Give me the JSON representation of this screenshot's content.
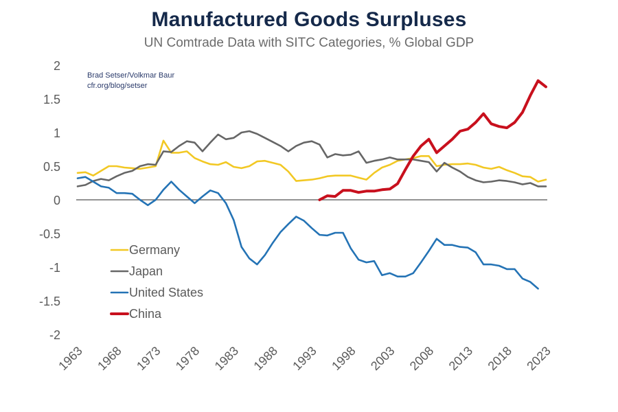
{
  "chart_data": {
    "type": "line",
    "title": "Manufactured Goods Surpluses",
    "subtitle": "UN Comtrade Data with SITC Categories, % Global GDP",
    "credit": [
      "Brad Setser/Volkmar Baur",
      "cfr.org/blog/setser"
    ],
    "xlabel": "",
    "ylabel": "",
    "ylim": [
      -2,
      2
    ],
    "xlim": [
      1963,
      2023
    ],
    "yticks": [
      2,
      1.5,
      1,
      0.5,
      0,
      -0.5,
      -1,
      -1.5,
      -2
    ],
    "ytick_labels": [
      "2",
      "1.5",
      "1",
      "0.5",
      "0",
      "-0.5",
      "-1",
      "-1.5",
      "-2"
    ],
    "xticks": [
      1963,
      1968,
      1973,
      1978,
      1983,
      1988,
      1993,
      1998,
      2003,
      2008,
      2013,
      2018,
      2023
    ],
    "xtick_labels": [
      "1963",
      "1968",
      "1973",
      "1978",
      "1983",
      "1988",
      "1993",
      "1998",
      "2003",
      "2008",
      "2013",
      "2018",
      "2023"
    ],
    "grid": false,
    "zero_line": true,
    "legend_position": "lower-left",
    "series": [
      {
        "name": "Germany",
        "color": "#f2c824",
        "start_year": 1963,
        "values": [
          0.4,
          0.41,
          0.36,
          0.43,
          0.5,
          0.5,
          0.48,
          0.47,
          0.46,
          0.48,
          0.5,
          0.88,
          0.7,
          0.7,
          0.72,
          0.62,
          0.57,
          0.53,
          0.52,
          0.56,
          0.49,
          0.47,
          0.5,
          0.57,
          0.58,
          0.55,
          0.52,
          0.42,
          0.28,
          0.29,
          0.3,
          0.32,
          0.35,
          0.36,
          0.36,
          0.36,
          0.33,
          0.3,
          0.4,
          0.48,
          0.52,
          0.58,
          0.6,
          0.62,
          0.65,
          0.65,
          0.5,
          0.52,
          0.53,
          0.53,
          0.54,
          0.52,
          0.48,
          0.46,
          0.49,
          0.44,
          0.4,
          0.35,
          0.34,
          0.27,
          0.3
        ]
      },
      {
        "name": "Japan",
        "color": "#666666",
        "start_year": 1963,
        "values": [
          0.2,
          0.22,
          0.28,
          0.31,
          0.29,
          0.35,
          0.4,
          0.43,
          0.5,
          0.53,
          0.52,
          0.72,
          0.71,
          0.8,
          0.87,
          0.85,
          0.72,
          0.85,
          0.97,
          0.9,
          0.92,
          1.0,
          1.02,
          0.98,
          0.92,
          0.86,
          0.8,
          0.72,
          0.8,
          0.85,
          0.87,
          0.82,
          0.63,
          0.68,
          0.66,
          0.67,
          0.72,
          0.55,
          0.58,
          0.6,
          0.63,
          0.6,
          0.6,
          0.6,
          0.58,
          0.56,
          0.42,
          0.55,
          0.48,
          0.42,
          0.34,
          0.29,
          0.26,
          0.27,
          0.29,
          0.28,
          0.26,
          0.23,
          0.25,
          0.2,
          0.2
        ]
      },
      {
        "name": "United States",
        "color": "#2473b5",
        "start_year": 1963,
        "values": [
          0.32,
          0.34,
          0.27,
          0.2,
          0.18,
          0.1,
          0.1,
          0.09,
          0.0,
          -0.08,
          0.0,
          0.15,
          0.27,
          0.15,
          0.05,
          -0.05,
          0.05,
          0.14,
          0.1,
          -0.05,
          -0.3,
          -0.7,
          -0.87,
          -0.96,
          -0.82,
          -0.64,
          -0.48,
          -0.36,
          -0.25,
          -0.31,
          -0.42,
          -0.52,
          -0.53,
          -0.49,
          -0.49,
          -0.72,
          -0.89,
          -0.93,
          -0.91,
          -1.12,
          -1.09,
          -1.14,
          -1.14,
          -1.09,
          -0.93,
          -0.76,
          -0.58,
          -0.67,
          -0.67,
          -0.7,
          -0.71,
          -0.78,
          -0.96,
          -0.96,
          -0.98,
          -1.03,
          -1.03,
          -1.17,
          -1.22,
          -1.32
        ]
      },
      {
        "name": "China",
        "color": "#c8101d",
        "start_year": 1994,
        "values": [
          0.0,
          0.06,
          0.05,
          0.14,
          0.14,
          0.11,
          0.13,
          0.13,
          0.15,
          0.16,
          0.24,
          0.45,
          0.65,
          0.8,
          0.9,
          0.7,
          0.8,
          0.9,
          1.02,
          1.05,
          1.15,
          1.28,
          1.13,
          1.09,
          1.07,
          1.15,
          1.3,
          1.55,
          1.77,
          1.68
        ]
      }
    ]
  }
}
